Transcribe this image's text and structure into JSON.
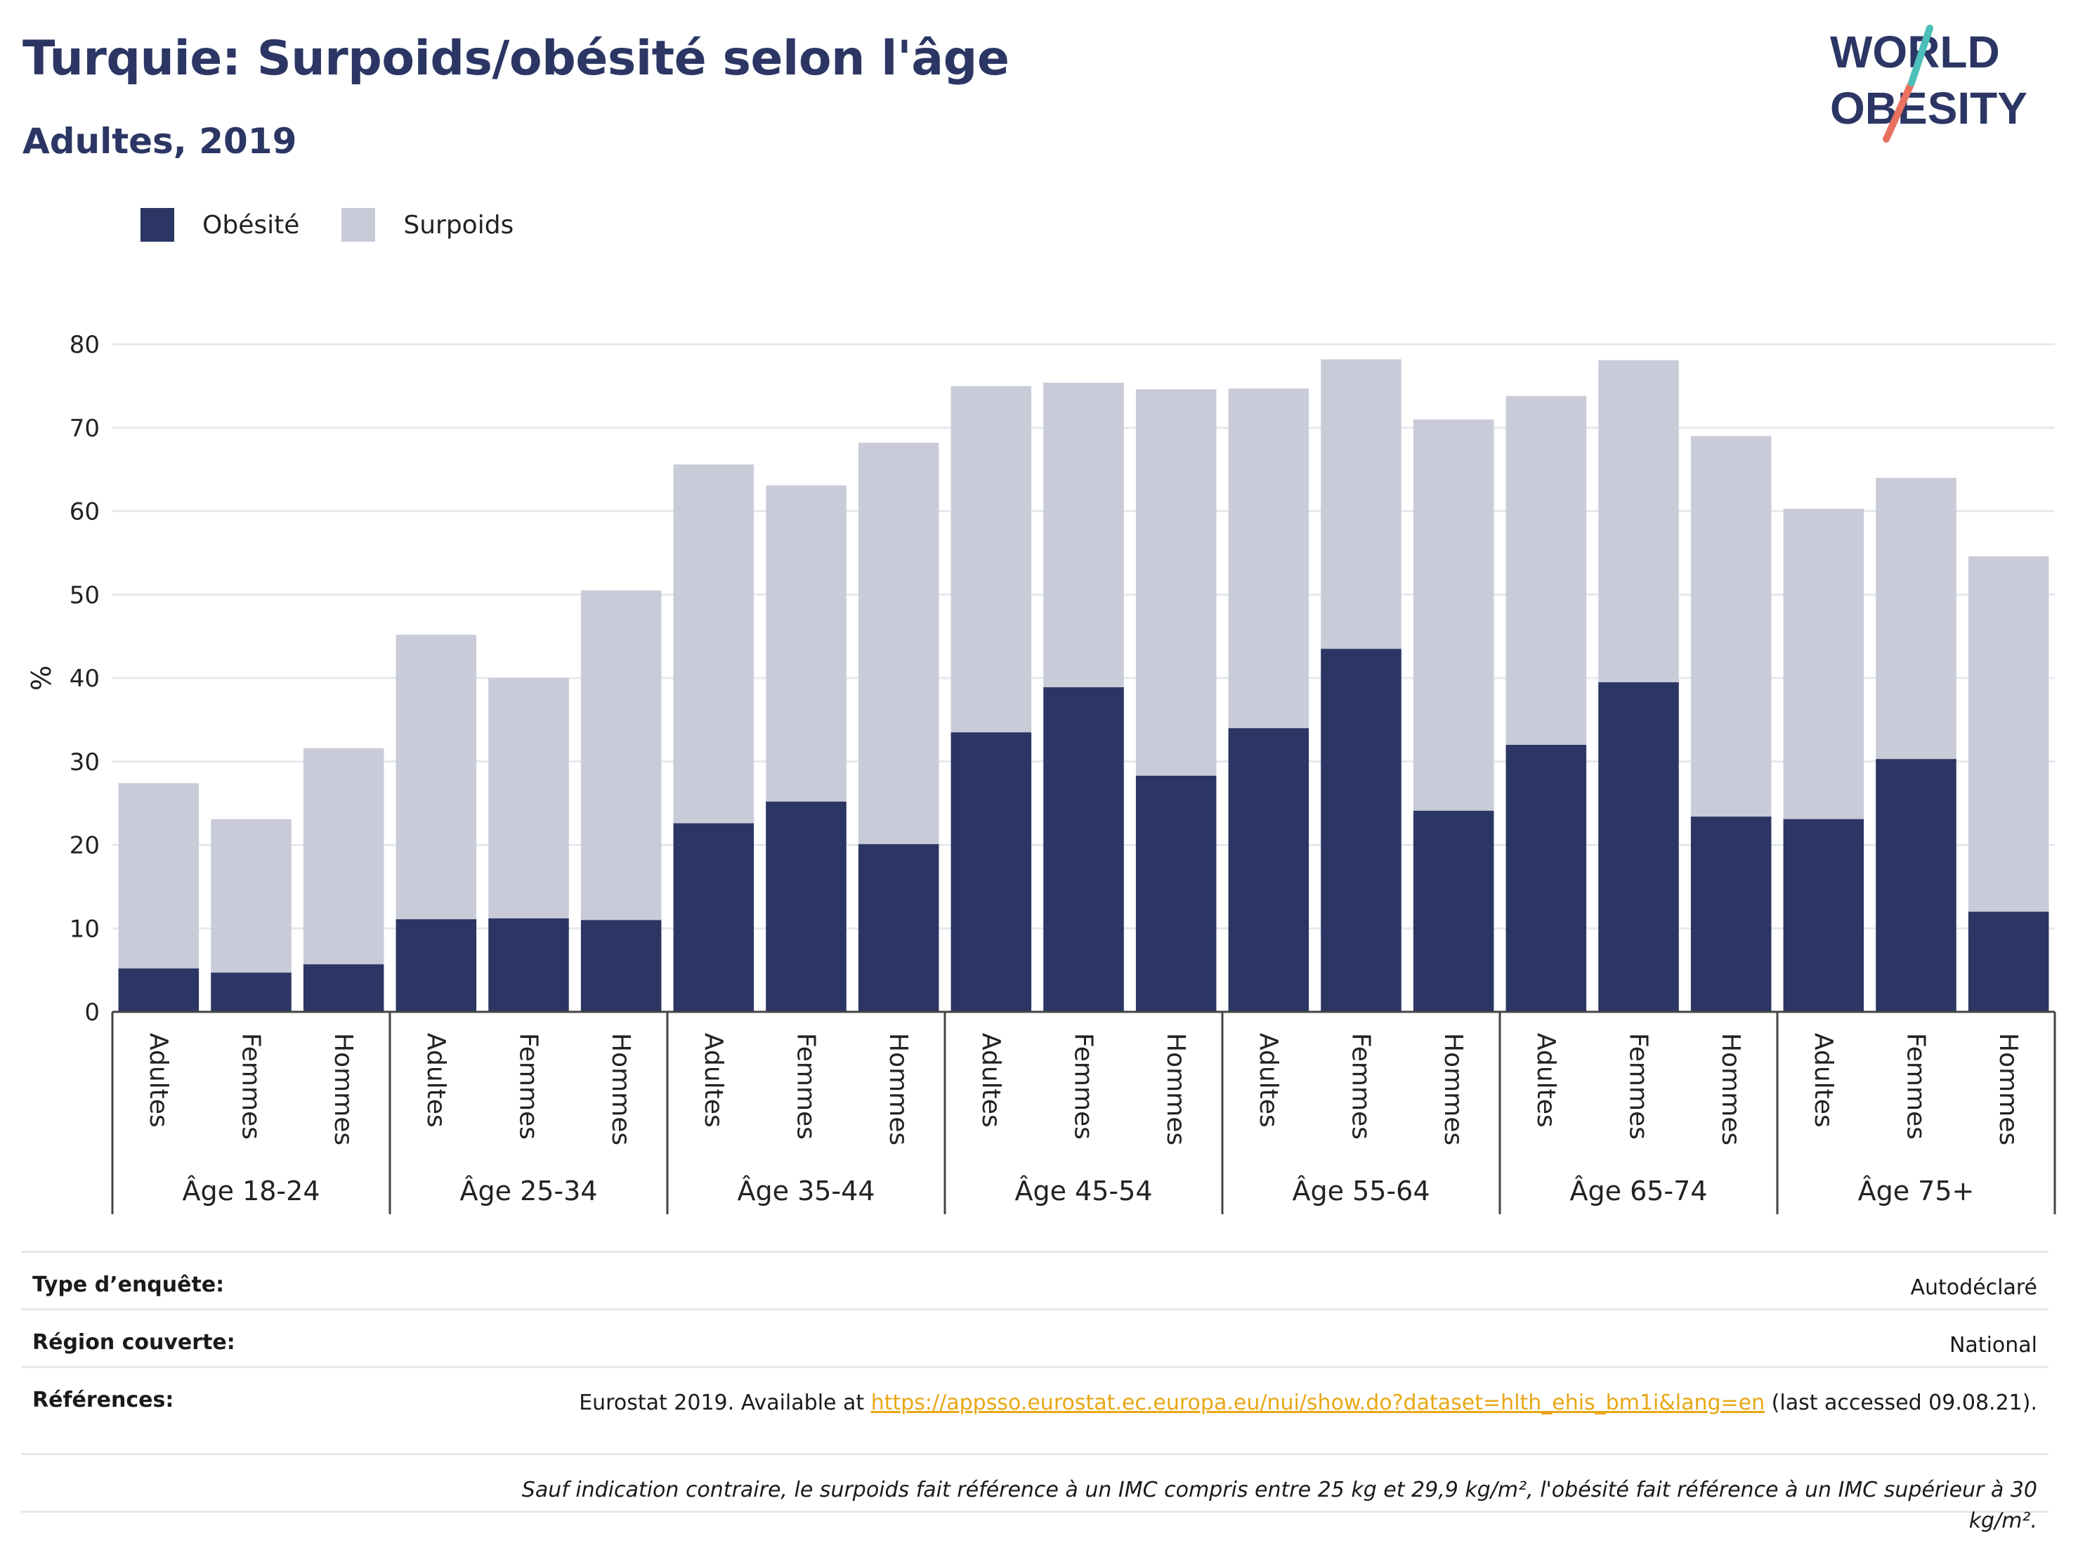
{
  "title": "Turquie: Surpoids/obésité selon l'âge",
  "subtitle": "Adultes, 2019",
  "logo": {
    "line1": "WORLD",
    "line2": "OBESITY"
  },
  "colors": {
    "obesity": "#2b3664",
    "overweight": "#c9ccd8",
    "accent": "#2b3664",
    "link": "#e8a715"
  },
  "chart_data": {
    "type": "bar",
    "stacked": true,
    "ylabel": "%",
    "ylim": [
      0,
      80
    ],
    "yticks": [
      0,
      10,
      20,
      30,
      40,
      50,
      60,
      70,
      80
    ],
    "grid": true,
    "legend_position": "top-left",
    "groups": [
      "Âge 18-24",
      "Âge 25-34",
      "Âge 35-44",
      "Âge 45-54",
      "Âge 55-64",
      "Âge 65-74",
      "Âge 75+"
    ],
    "subcategories": [
      "Adultes",
      "Femmes",
      "Hommes"
    ],
    "series": [
      {
        "name": "Obésité",
        "values": [
          5.2,
          4.7,
          5.7,
          11.1,
          11.2,
          11.0,
          22.6,
          25.2,
          20.1,
          33.5,
          38.9,
          28.3,
          34.0,
          43.5,
          24.1,
          32.0,
          39.5,
          23.4,
          23.1,
          30.3,
          12.0
        ]
      },
      {
        "name": "Surpoids",
        "values": [
          22.2,
          18.4,
          25.9,
          34.1,
          28.8,
          39.5,
          43.0,
          37.9,
          48.1,
          41.5,
          36.5,
          46.3,
          40.7,
          34.7,
          46.9,
          41.8,
          38.6,
          45.6,
          37.2,
          33.7,
          42.6
        ]
      }
    ]
  },
  "info": {
    "survey_type_label": "Type d’enquête:",
    "survey_type_value": "Autodéclaré",
    "region_label": "Région couverte:",
    "region_value": "National",
    "references_label": "Références:",
    "references_prefix": "Eurostat 2019. Available at ",
    "references_link": "https://appsso.eurostat.ec.europa.eu/nui/show.do?dataset=hlth_ehis_bm1i&lang=en",
    "references_suffix": " (last accessed 09.08.21).",
    "note": "Sauf indication contraire, le surpoids fait référence à un IMC compris entre 25 kg et 29,9 kg/m², l'obésité fait référence à un IMC supérieur à 30 kg/m²."
  }
}
